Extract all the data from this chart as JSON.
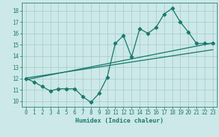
{
  "title": "",
  "xlabel": "Humidex (Indice chaleur)",
  "ylabel": "",
  "xlim": [
    -0.5,
    23.5
  ],
  "ylim": [
    9.5,
    18.7
  ],
  "yticks": [
    10,
    11,
    12,
    13,
    14,
    15,
    16,
    17,
    18
  ],
  "xticks": [
    0,
    1,
    2,
    3,
    4,
    5,
    6,
    7,
    8,
    9,
    10,
    11,
    12,
    13,
    14,
    15,
    16,
    17,
    18,
    19,
    20,
    21,
    22,
    23
  ],
  "bg_color": "#cce8e8",
  "grid_color": "#aacccc",
  "line_color": "#1a7a6e",
  "line1_x": [
    0,
    1,
    2,
    3,
    4,
    5,
    6,
    7,
    8,
    9,
    10,
    11,
    12,
    13,
    14,
    15,
    16,
    17,
    18,
    19,
    20,
    21,
    22,
    23
  ],
  "line1_y": [
    12.0,
    11.7,
    11.3,
    10.9,
    11.1,
    11.1,
    11.1,
    10.4,
    9.9,
    10.7,
    12.1,
    15.1,
    15.8,
    13.9,
    16.4,
    16.0,
    16.5,
    17.7,
    18.2,
    17.0,
    16.1,
    15.1,
    15.1,
    15.1
  ],
  "line2_x": [
    0,
    23
  ],
  "line2_y": [
    11.9,
    15.15
  ],
  "line3_x": [
    0,
    23
  ],
  "line3_y": [
    12.05,
    14.55
  ],
  "marker": "D",
  "markersize": 2.5,
  "linewidth": 1.0,
  "tick_fontsize": 5.5,
  "xlabel_fontsize": 6.5
}
